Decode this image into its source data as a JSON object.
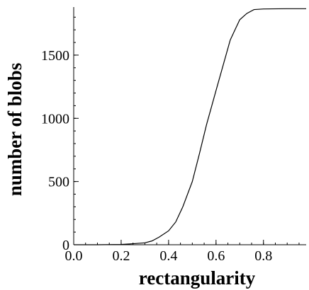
{
  "chart_data": {
    "type": "line",
    "title": "",
    "xlabel": "rectangularity",
    "ylabel": "number of blobs",
    "xlim": [
      0.0,
      0.98
    ],
    "ylim": [
      0,
      1880
    ],
    "x_ticks": [
      0.0,
      0.2,
      0.4,
      0.6,
      0.8
    ],
    "x_tick_labels": [
      "0.0",
      "0.2",
      "0.4",
      "0.6",
      "0.8"
    ],
    "x_minor_step": 0.05,
    "y_ticks": [
      0,
      500,
      1000,
      1500
    ],
    "y_tick_labels": [
      "0",
      "500",
      "1000",
      "1500"
    ],
    "y_minor_step": 100,
    "grid": false,
    "legend": "none",
    "series": [
      {
        "color": "#000000",
        "x": [
          0.0,
          0.1,
          0.2,
          0.25,
          0.3,
          0.33,
          0.36,
          0.4,
          0.43,
          0.46,
          0.5,
          0.53,
          0.56,
          0.6,
          0.63,
          0.66,
          0.68,
          0.7,
          0.73,
          0.76,
          0.8,
          0.9,
          0.98
        ],
        "y": [
          0,
          0,
          2,
          8,
          15,
          30,
          60,
          110,
          180,
          300,
          500,
          720,
          950,
          1220,
          1420,
          1620,
          1700,
          1780,
          1830,
          1860,
          1865,
          1867,
          1867
        ]
      }
    ]
  }
}
